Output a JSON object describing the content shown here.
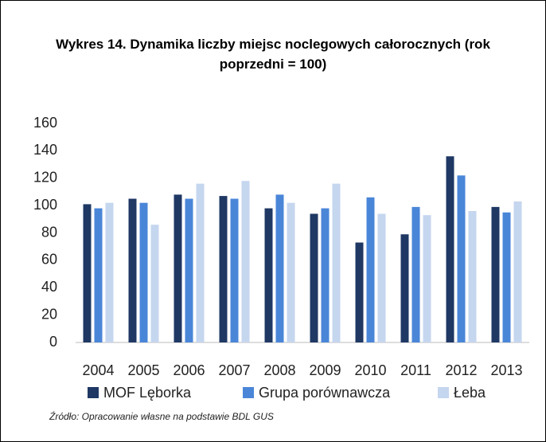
{
  "chart_data": {
    "type": "bar",
    "title": "Wykres 14. Dynamika liczby miejsc noclegowych całorocznych (rok poprzedni = 100)",
    "categories": [
      "2004",
      "2005",
      "2006",
      "2007",
      "2008",
      "2009",
      "2010",
      "2011",
      "2012",
      "2013"
    ],
    "series": [
      {
        "name": "MOF Lęborka",
        "color": "#1f3864",
        "values": [
          101,
          105,
          108,
          107,
          98,
          94,
          73,
          79,
          136,
          99
        ]
      },
      {
        "name": "Grupa porównawcza",
        "color": "#4a86d8",
        "values": [
          98,
          102,
          105,
          105,
          108,
          98,
          106,
          99,
          122,
          95
        ]
      },
      {
        "name": "Łeba",
        "color": "#c5d6ef",
        "values": [
          102,
          86,
          116,
          118,
          102,
          116,
          94,
          93,
          96,
          103
        ]
      }
    ],
    "ylim": [
      0,
      160
    ],
    "yticks": [
      0,
      20,
      40,
      60,
      80,
      100,
      120,
      140,
      160
    ],
    "grid": false,
    "legend": "bottom",
    "source": "Źródło: Opracowanie własne na podstawie BDL GUS"
  }
}
